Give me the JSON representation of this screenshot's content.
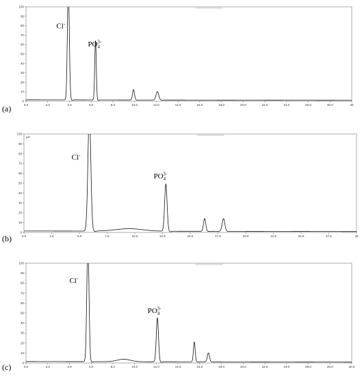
{
  "chart_data": [
    {
      "type": "line",
      "panel_label": "(a)",
      "unit_label": "",
      "xlim": [
        0,
        30
      ],
      "ylim": [
        0,
        100
      ],
      "x_ticks": [
        "0.0",
        "2.0",
        "4.0",
        "6.0",
        "8.0",
        "10.0",
        "12.0",
        "14.0",
        "16.0",
        "18.0",
        "20.0",
        "22.0",
        "24.0",
        "26.0",
        "28.0",
        "30"
      ],
      "y_ticks": [
        "0",
        "10",
        "20",
        "30",
        "40",
        "50",
        "60",
        "70",
        "80",
        "90",
        "100"
      ],
      "baseline": 1.5,
      "peaks": [
        {
          "x": 3.9,
          "height": 120,
          "width": 0.09
        },
        {
          "x": 6.4,
          "height": 63,
          "width": 0.07
        },
        {
          "x": 9.9,
          "height": 11,
          "width": 0.09
        },
        {
          "x": 12.1,
          "height": 9,
          "width": 0.12
        }
      ],
      "annotations": [
        {
          "base": "Cl",
          "sup": "-",
          "sub": "",
          "x": 2.8,
          "y": 77
        },
        {
          "base": "PO",
          "sub": "4",
          "sup": "3-",
          "x": 5.7,
          "y": 58
        }
      ]
    },
    {
      "type": "line",
      "panel_label": "(b)",
      "unit_label": "µS",
      "xlim": [
        0,
        30
      ],
      "ylim": [
        0,
        100
      ],
      "x_ticks": [
        "0.0",
        "2.5",
        "5.0",
        "7.5",
        "10.0",
        "12.5",
        "15.0",
        "17.5",
        "20.0",
        "22.5",
        "25.0",
        "27.5",
        "30"
      ],
      "y_ticks": [
        "0",
        "10",
        "20",
        "30",
        "40",
        "50",
        "60",
        "70",
        "80",
        "90",
        "100"
      ],
      "baseline": 1.5,
      "peaks": [
        {
          "x": 5.9,
          "height": 120,
          "width": 0.13
        },
        {
          "x": 9.5,
          "height": 2.5,
          "width": 1.2
        },
        {
          "x": 12.8,
          "height": 48,
          "width": 0.11
        },
        {
          "x": 16.3,
          "height": 13,
          "width": 0.1
        },
        {
          "x": 18.0,
          "height": 13,
          "width": 0.12
        }
      ],
      "annotations": [
        {
          "base": "Cl",
          "sup": "-",
          "sub": "",
          "x": 4.3,
          "y": 74
        },
        {
          "base": "PO",
          "sub": "4",
          "sup": "3-",
          "x": 11.7,
          "y": 55
        }
      ]
    },
    {
      "type": "line",
      "panel_label": "(c)",
      "unit_label": "",
      "xlim": [
        0,
        30
      ],
      "ylim": [
        0,
        100
      ],
      "x_ticks": [
        "0.0",
        "2.0",
        "4.0",
        "6.0",
        "8.0",
        "10.0",
        "12.0",
        "14.0",
        "16.0",
        "18.0",
        "20.0",
        "22.0",
        "24.0",
        "26.0",
        "28.0",
        "30.0"
      ],
      "y_ticks": [
        "0",
        "10",
        "20",
        "30",
        "40",
        "50",
        "60",
        "70",
        "80",
        "90",
        "100"
      ],
      "baseline": 1.5,
      "peaks": [
        {
          "x": 5.7,
          "height": 120,
          "width": 0.1
        },
        {
          "x": 9.0,
          "height": 2.5,
          "width": 0.6
        },
        {
          "x": 12.1,
          "height": 44,
          "width": 0.1
        },
        {
          "x": 15.5,
          "height": 20,
          "width": 0.08
        },
        {
          "x": 16.8,
          "height": 9,
          "width": 0.1
        }
      ],
      "annotations": [
        {
          "base": "Cl",
          "sup": "-",
          "sub": "",
          "x": 4.0,
          "y": 80
        },
        {
          "base": "PO",
          "sub": "4",
          "sup": "3-",
          "x": 11.2,
          "y": 50
        }
      ]
    }
  ]
}
